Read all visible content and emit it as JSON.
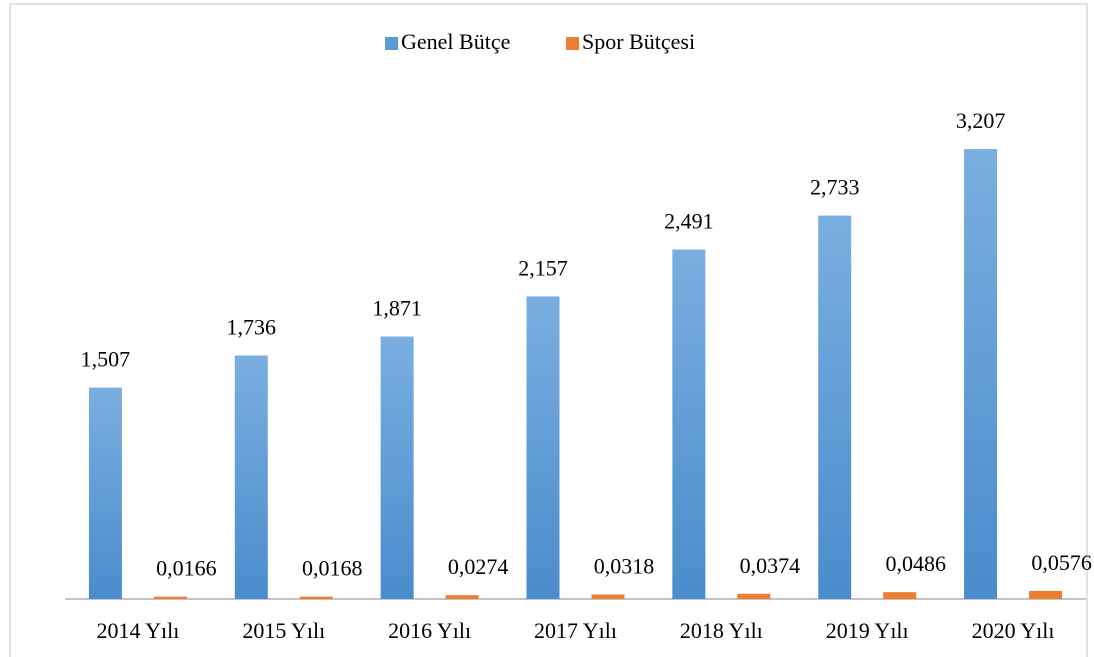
{
  "chart_data": {
    "type": "bar",
    "categories": [
      "2014 Yılı",
      "2015 Yılı",
      "2016 Yılı",
      "2017 Yılı",
      "2018 Yılı",
      "2019 Yılı",
      "2020 Yılı"
    ],
    "series": [
      {
        "name": "Genel Bütçe",
        "color": "#5b9bd5",
        "values": [
          1.507,
          1.736,
          1.871,
          2.157,
          2.491,
          2.733,
          3.207
        ],
        "value_labels": [
          "1,507",
          "1,736",
          "1,871",
          "2,157",
          "2,491",
          "2,733",
          "3,207"
        ]
      },
      {
        "name": "Spor Bütçesi",
        "color": "#ed7d31",
        "values": [
          0.0166,
          0.0168,
          0.0274,
          0.0318,
          0.0374,
          0.0486,
          0.0576
        ],
        "value_labels": [
          "0,0166",
          "0,0168",
          "0,0274",
          "0,0318",
          "0,0374",
          "0,0486",
          "0,0576"
        ]
      }
    ],
    "ylim": [
      0,
      3.5
    ],
    "legend": "top"
  }
}
